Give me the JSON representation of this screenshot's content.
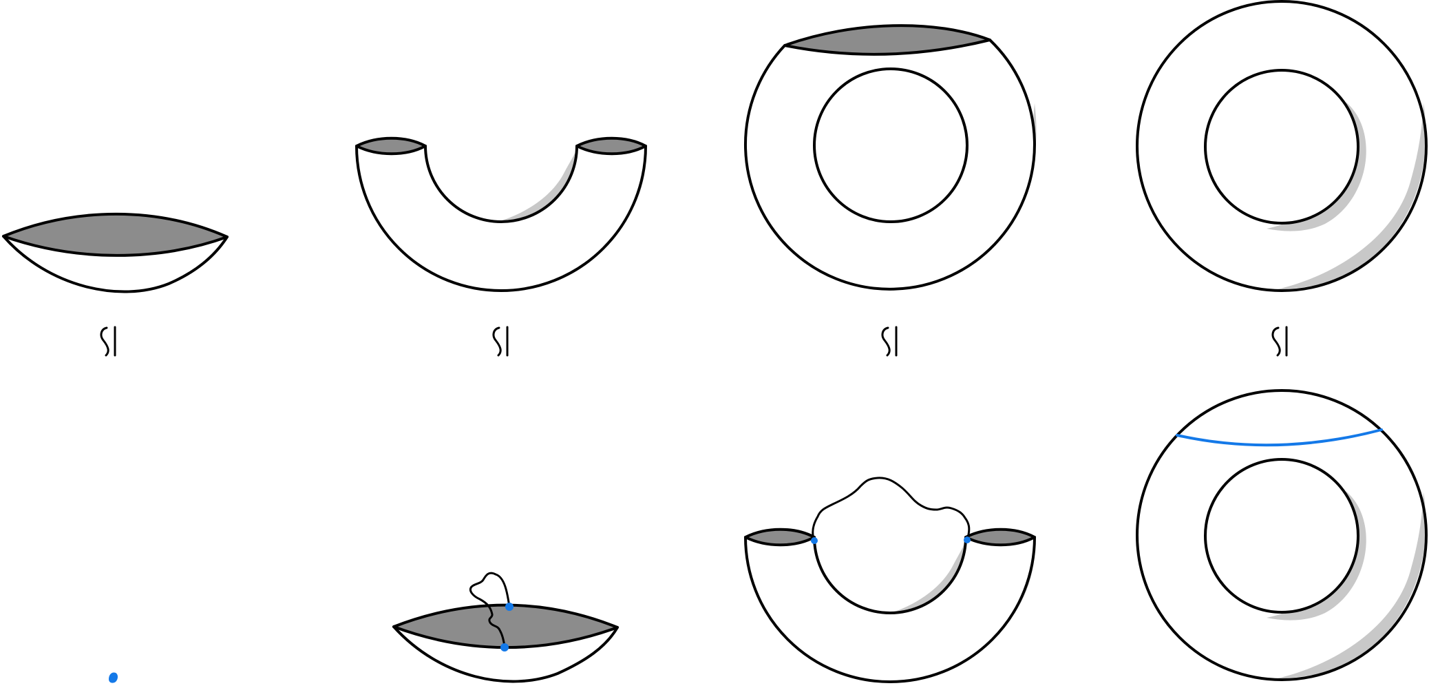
{
  "colors": {
    "background": "#ffffff",
    "stroke": "#000000",
    "cap_fill": "#8c8c8c",
    "shadow": "#c8c8c8",
    "accent": "#1479e8"
  },
  "top_row": [
    {
      "name": "disk-lens",
      "symbol": "≅"
    },
    {
      "name": "arch",
      "symbol": "≅"
    },
    {
      "name": "torus-with-cap",
      "symbol": "≅"
    },
    {
      "name": "torus"
    }
  ],
  "bottom_row": [
    {
      "name": "point"
    },
    {
      "name": "disk-lens-with-path"
    },
    {
      "name": "arch-with-wavy-arc"
    },
    {
      "name": "torus-with-curve"
    }
  ]
}
